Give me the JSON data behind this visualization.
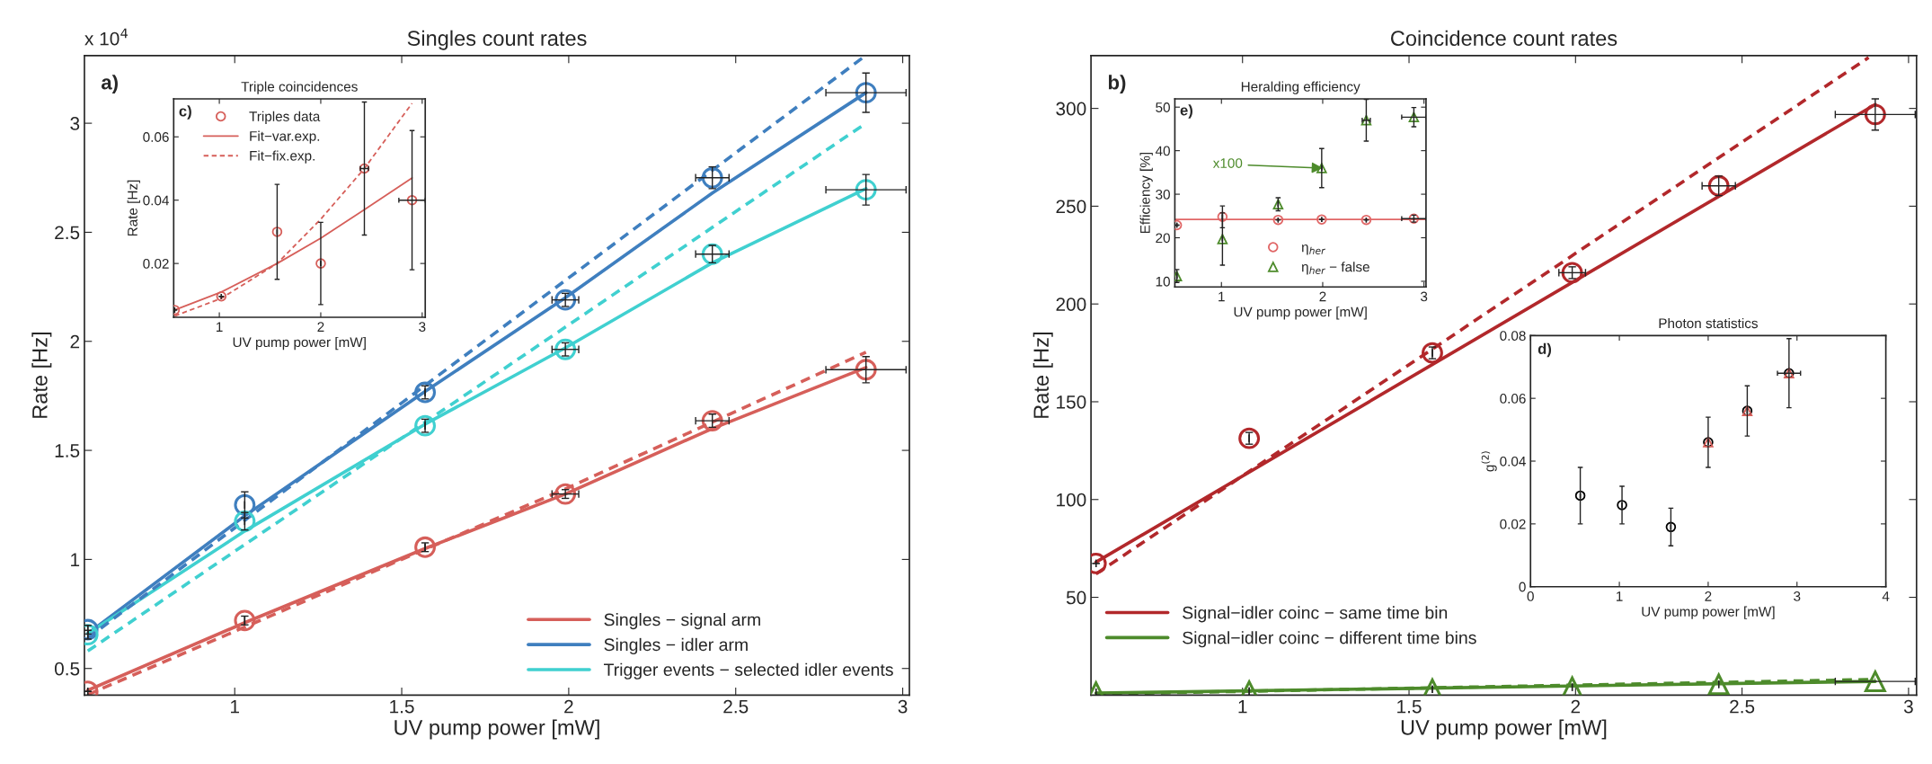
{
  "chart_data": [
    {
      "type": "scatter",
      "title": "Singles count rates",
      "xlabel": "UV pump power [mW]",
      "ylabel": "Rate [Hz]",
      "annotations": [
        "a)",
        "x 10$^{4}$"
      ],
      "xlim": [
        0.55,
        3.02
      ],
      "ylim": [
        0.378,
        3.31
      ],
      "xticks": [
        1,
        1.5,
        2,
        2.5,
        3
      ],
      "yticks": [
        0.5,
        1,
        1.5,
        2,
        2.5,
        3
      ],
      "grid": false,
      "legend": "bottom right",
      "series": [
        {
          "type": "line",
          "name": "Singles − signal arm",
          "color": "#d65f5a",
          "line_style": "solid",
          "x": [
            0.56,
            1.03,
            1.57,
            1.99,
            2.43,
            2.89
          ],
          "values": [
            0.4,
            0.71,
            1.05,
            1.3,
            1.6,
            1.88
          ]
        },
        {
          "type": "line",
          "name": "Singles − idler arm",
          "color": "#3f7fbf",
          "line_style": "solid",
          "x": [
            0.56,
            1.03,
            1.57,
            1.99,
            2.43,
            2.89
          ],
          "values": [
            0.66,
            1.2,
            1.77,
            2.2,
            2.68,
            3.14
          ]
        },
        {
          "type": "line",
          "name": "Trigger events − selected idler events",
          "color": "#40d0d0",
          "line_style": "solid",
          "x": [
            0.56,
            1.03,
            1.57,
            1.99,
            2.43,
            2.89
          ],
          "values": [
            0.66,
            1.13,
            1.62,
            1.97,
            2.36,
            2.7
          ]
        },
        {
          "type": "line",
          "color": "#d65f5a",
          "line_style": "dashed",
          "x": [
            0.56,
            2.0,
            2.89
          ],
          "values": [
            0.38,
            1.33,
            1.95
          ]
        },
        {
          "type": "line",
          "color": "#3f7fbf",
          "line_style": "dashed",
          "x": [
            0.56,
            2.88
          ],
          "values": [
            0.64,
            3.3
          ]
        },
        {
          "type": "line",
          "color": "#40d0d0",
          "line_style": "dashed",
          "x": [
            0.56,
            2.89
          ],
          "values": [
            0.58,
            3.0
          ]
        },
        {
          "type": "scatter",
          "color": "#d65f5a",
          "marker": "circle",
          "x": [
            0.56,
            1.03,
            1.57,
            1.99,
            2.43,
            2.89
          ],
          "values": [
            0.395,
            0.72,
            1.056,
            1.3,
            1.636,
            1.87
          ],
          "errors": [
            null,
            0.02,
            0.02,
            0.02,
            0.03,
            0.06
          ],
          "xerrors": [
            null,
            null,
            null,
            0.04,
            0.05,
            0.12
          ]
        },
        {
          "type": "scatter",
          "color": "#3f7fbf",
          "marker": "circle",
          "x": [
            0.56,
            1.03,
            1.57,
            1.99,
            2.43,
            2.89
          ],
          "values": [
            0.678,
            1.25,
            1.766,
            2.19,
            2.75,
            3.14
          ],
          "errors": [
            0.02,
            0.06,
            0.03,
            0.03,
            0.05,
            0.09
          ],
          "xerrors": [
            null,
            null,
            null,
            0.04,
            0.05,
            0.12
          ]
        },
        {
          "type": "scatter",
          "color": "#40d0d0",
          "marker": "circle",
          "x": [
            0.56,
            1.03,
            1.57,
            1.99,
            2.43,
            2.89
          ],
          "values": [
            0.655,
            1.175,
            1.613,
            1.963,
            2.4,
            2.695
          ],
          "errors": [
            0.02,
            0.04,
            0.03,
            0.03,
            0.04,
            0.07
          ],
          "xerrors": [
            null,
            null,
            null,
            0.04,
            0.05,
            0.12
          ]
        }
      ]
    },
    {
      "type": "scatter",
      "title": "Triple coincidences",
      "xlabel": "UV pump power [mW]",
      "ylabel": "Rate [Hz]",
      "annotations": [
        "c)"
      ],
      "xlim": [
        0.55,
        3.03
      ],
      "ylim": [
        0.003,
        0.072
      ],
      "xticks": [
        1,
        2,
        3
      ],
      "yticks": [
        0.02,
        0.04,
        0.06
      ],
      "grid": false,
      "legend": "top left",
      "series": [
        {
          "type": "scatter",
          "name": "Triples data",
          "color": "#d65f5a",
          "marker": "circle",
          "x": [
            0.56,
            1.02,
            1.57,
            2.0,
            2.43,
            2.9
          ],
          "values": [
            0.0053,
            0.0096,
            0.03,
            0.02,
            0.05,
            0.04
          ],
          "errors": [
            null,
            null,
            0.015,
            0.013,
            0.021,
            0.022
          ],
          "xerrors": [
            null,
            null,
            null,
            null,
            0.04,
            0.13
          ]
        },
        {
          "type": "line",
          "name": "Fit−var.exp.",
          "color": "#d65f5a",
          "line_style": "solid",
          "x": [
            0.56,
            1.02,
            1.57,
            2.0,
            2.43,
            2.9
          ],
          "values": [
            0.0053,
            0.011,
            0.02,
            0.028,
            0.037,
            0.047
          ]
        },
        {
          "type": "line",
          "name": "Fit−fix.exp.",
          "color": "#d65f5a",
          "line_style": "dashed",
          "x": [
            0.56,
            1.02,
            1.57,
            2.0,
            2.43,
            2.9
          ],
          "values": [
            0.0034,
            0.009,
            0.02,
            0.034,
            0.05,
            0.0706
          ]
        }
      ]
    },
    {
      "type": "scatter",
      "title": "Coincidence count rates",
      "xlabel": "UV pump power [mW]",
      "ylabel": "Rate [Hz]",
      "annotations": [
        "b)"
      ],
      "xlim": [
        0.545,
        3.024
      ],
      "ylim": [
        0,
        327
      ],
      "xticks": [
        1,
        1.5,
        2,
        2.5,
        3
      ],
      "yticks": [
        50,
        100,
        150,
        200,
        250,
        300
      ],
      "grid": false,
      "legend": "bottom left",
      "series": [
        {
          "type": "line",
          "name": "Signal−idler coinc − same time bin",
          "color": "#b2282b",
          "line_style": "solid",
          "x": [
            0.56,
            2.9
          ],
          "values": [
            68,
            302
          ]
        },
        {
          "type": "line",
          "name": "Signal−idler coinc − different time bins",
          "color": "#4d8b2b",
          "line_style": "solid",
          "x": [
            0.56,
            2.9
          ],
          "values": [
            1,
            7
          ]
        },
        {
          "type": "line",
          "color": "#b2282b",
          "line_style": "dashed",
          "x": [
            0.56,
            2.88
          ],
          "values": [
            62,
            326
          ]
        },
        {
          "type": "line",
          "color": "#4d8b2b",
          "line_style": "dashed",
          "x": [
            0.56,
            2.9
          ],
          "values": [
            0.5,
            8
          ]
        },
        {
          "type": "scatter",
          "color": "#b2282b",
          "marker": "circle",
          "x": [
            0.56,
            1.02,
            1.57,
            1.99,
            2.43,
            2.9
          ],
          "values": [
            67.3,
            131.3,
            175,
            216,
            260.4,
            296.9
          ],
          "errors": [
            null,
            3,
            3,
            3,
            5,
            8
          ],
          "xerrors": [
            null,
            null,
            null,
            0.04,
            0.05,
            0.12
          ]
        },
        {
          "type": "scatter",
          "color": "#4d8b2b",
          "marker": "triangle",
          "x": [
            0.56,
            1.02,
            1.57,
            1.99,
            2.43,
            2.9
          ],
          "values": [
            1.5,
            2,
            3,
            4,
            5.5,
            7
          ],
          "xerrors": [
            null,
            null,
            null,
            null,
            null,
            0.12
          ]
        }
      ]
    },
    {
      "type": "scatter",
      "title": "Heralding efficiency",
      "xlabel": "UV pump power [mW]",
      "ylabel": "Efficiency [%]",
      "annotations": [
        "e)",
        {
          "text": "x100",
          "x": 2.0,
          "y": 36
        }
      ],
      "xlim": [
        0.54,
        3.02
      ],
      "ylim": [
        8.7,
        51.9
      ],
      "xticks": [
        1,
        2,
        3
      ],
      "yticks": [
        10,
        20,
        30,
        40,
        50
      ],
      "grid": false,
      "legend": "bottom",
      "series": [
        {
          "type": "line",
          "color": "#e06666",
          "line_style": "solid",
          "x": [
            0.54,
            3.02
          ],
          "values": [
            24.2,
            24.2
          ]
        },
        {
          "type": "scatter",
          "name": "η$_{her}$",
          "color": "#e06666",
          "marker": "circle",
          "x": [
            0.56,
            1.01,
            1.56,
            1.99,
            2.43,
            2.9
          ],
          "values": [
            22.9,
            24.8,
            24.1,
            24.2,
            24.1,
            24.4
          ],
          "errors": [
            null,
            2.5,
            null,
            null,
            null,
            0.8
          ],
          "xerrors": [
            null,
            null,
            null,
            null,
            null,
            0.12
          ]
        },
        {
          "type": "scatter",
          "name": "η$_{her}$ − false",
          "color": "#4d8b2b",
          "marker": "triangle",
          "x": [
            0.56,
            1.01,
            1.56,
            1.99,
            2.43,
            2.9
          ],
          "values": [
            11.2,
            19.7,
            27.7,
            36.0,
            47.0,
            47.7
          ],
          "errors": [
            1.5,
            6,
            1.5,
            4.5,
            4.8,
            2.2
          ],
          "xerrors": [
            null,
            null,
            null,
            null,
            0.04,
            0.12
          ]
        }
      ]
    },
    {
      "type": "scatter",
      "title": "Photon statistics",
      "xlabel": "UV pump power [mW]",
      "ylabel": "g$^{(2)}$",
      "annotations": [
        "d)"
      ],
      "xlim": [
        0,
        4
      ],
      "ylim": [
        0,
        0.08
      ],
      "xticks": [
        0,
        1,
        2,
        3,
        4
      ],
      "yticks": [
        0,
        0.02,
        0.04,
        0.06,
        0.08
      ],
      "grid": false,
      "series": [
        {
          "type": "scatter",
          "color": "#000000",
          "marker": "circle",
          "x": [
            0.56,
            1.03,
            1.58,
            2.0,
            2.44,
            2.91
          ],
          "values": [
            0.029,
            0.026,
            0.019,
            0.046,
            0.056,
            0.068
          ],
          "errors": [
            0.009,
            0.006,
            0.006,
            0.008,
            0.008,
            0.011
          ],
          "xerrors": [
            null,
            null,
            null,
            null,
            null,
            0.13
          ]
        },
        {
          "type": "scatter",
          "color": "#d65f5a",
          "marker": "triangle",
          "x": [
            2.0,
            2.44,
            2.91
          ],
          "values": [
            0.046,
            0.056,
            0.068
          ]
        }
      ]
    }
  ]
}
